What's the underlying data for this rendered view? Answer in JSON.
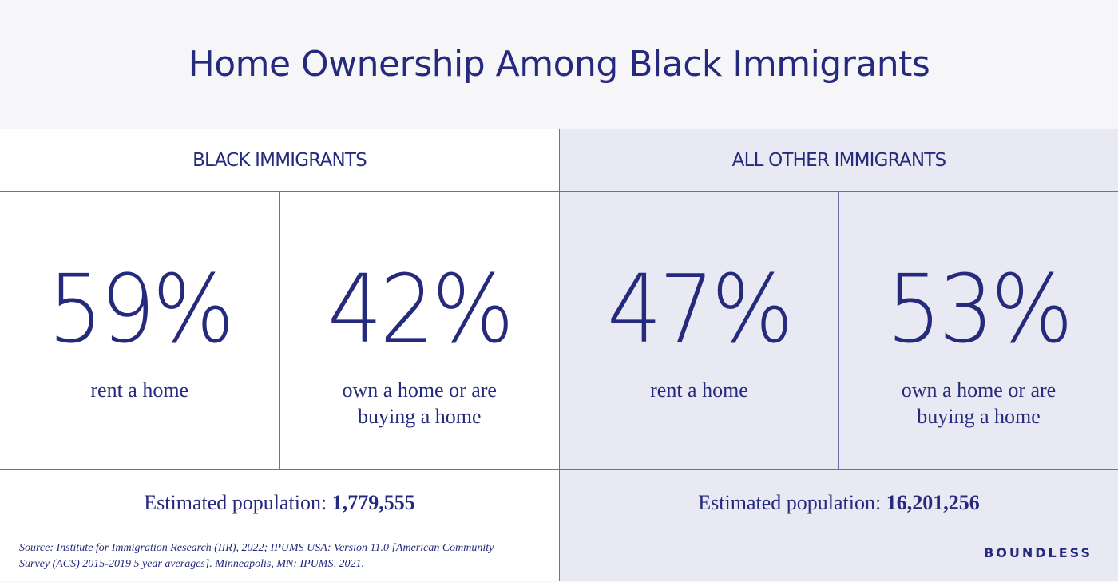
{
  "title": "Home Ownership Among Black Immigrants",
  "groups": [
    {
      "header": "BLACK IMMIGRANTS",
      "stats": [
        {
          "value": "59%",
          "label": "rent a home"
        },
        {
          "value": "42%",
          "label": "own a home or are buying a home"
        }
      ],
      "population_label": "Estimated population:",
      "population_value": "1,779,555"
    },
    {
      "header": "ALL OTHER IMMIGRANTS",
      "stats": [
        {
          "value": "47%",
          "label": "rent a home"
        },
        {
          "value": "53%",
          "label": "own a home or are buying a home"
        }
      ],
      "population_label": "Estimated population:",
      "population_value": "16,201,256"
    }
  ],
  "source": "Source: Institute for Immigration Research (IIR), 2022; IPUMS USA: Version 11.0 [American Community Survey (ACS) 2015-2019 5 year averages]. Minneapolis, MN: IPUMS, 2021.",
  "brand": "BOUNDLESS",
  "colors": {
    "primary": "#252a7d",
    "panel_right_bg": "#e9e9f3",
    "title_bg": "#f6f6f9",
    "divider": "#6b6fa6"
  },
  "chart_data": {
    "type": "table",
    "title": "Home Ownership Among Black Immigrants",
    "categories": [
      "rent a home",
      "own a home or are buying a home"
    ],
    "series": [
      {
        "name": "Black Immigrants",
        "values": [
          59,
          42
        ],
        "population": 1779555
      },
      {
        "name": "All Other Immigrants",
        "values": [
          47,
          53
        ],
        "population": 16201256
      }
    ],
    "unit": "%"
  }
}
